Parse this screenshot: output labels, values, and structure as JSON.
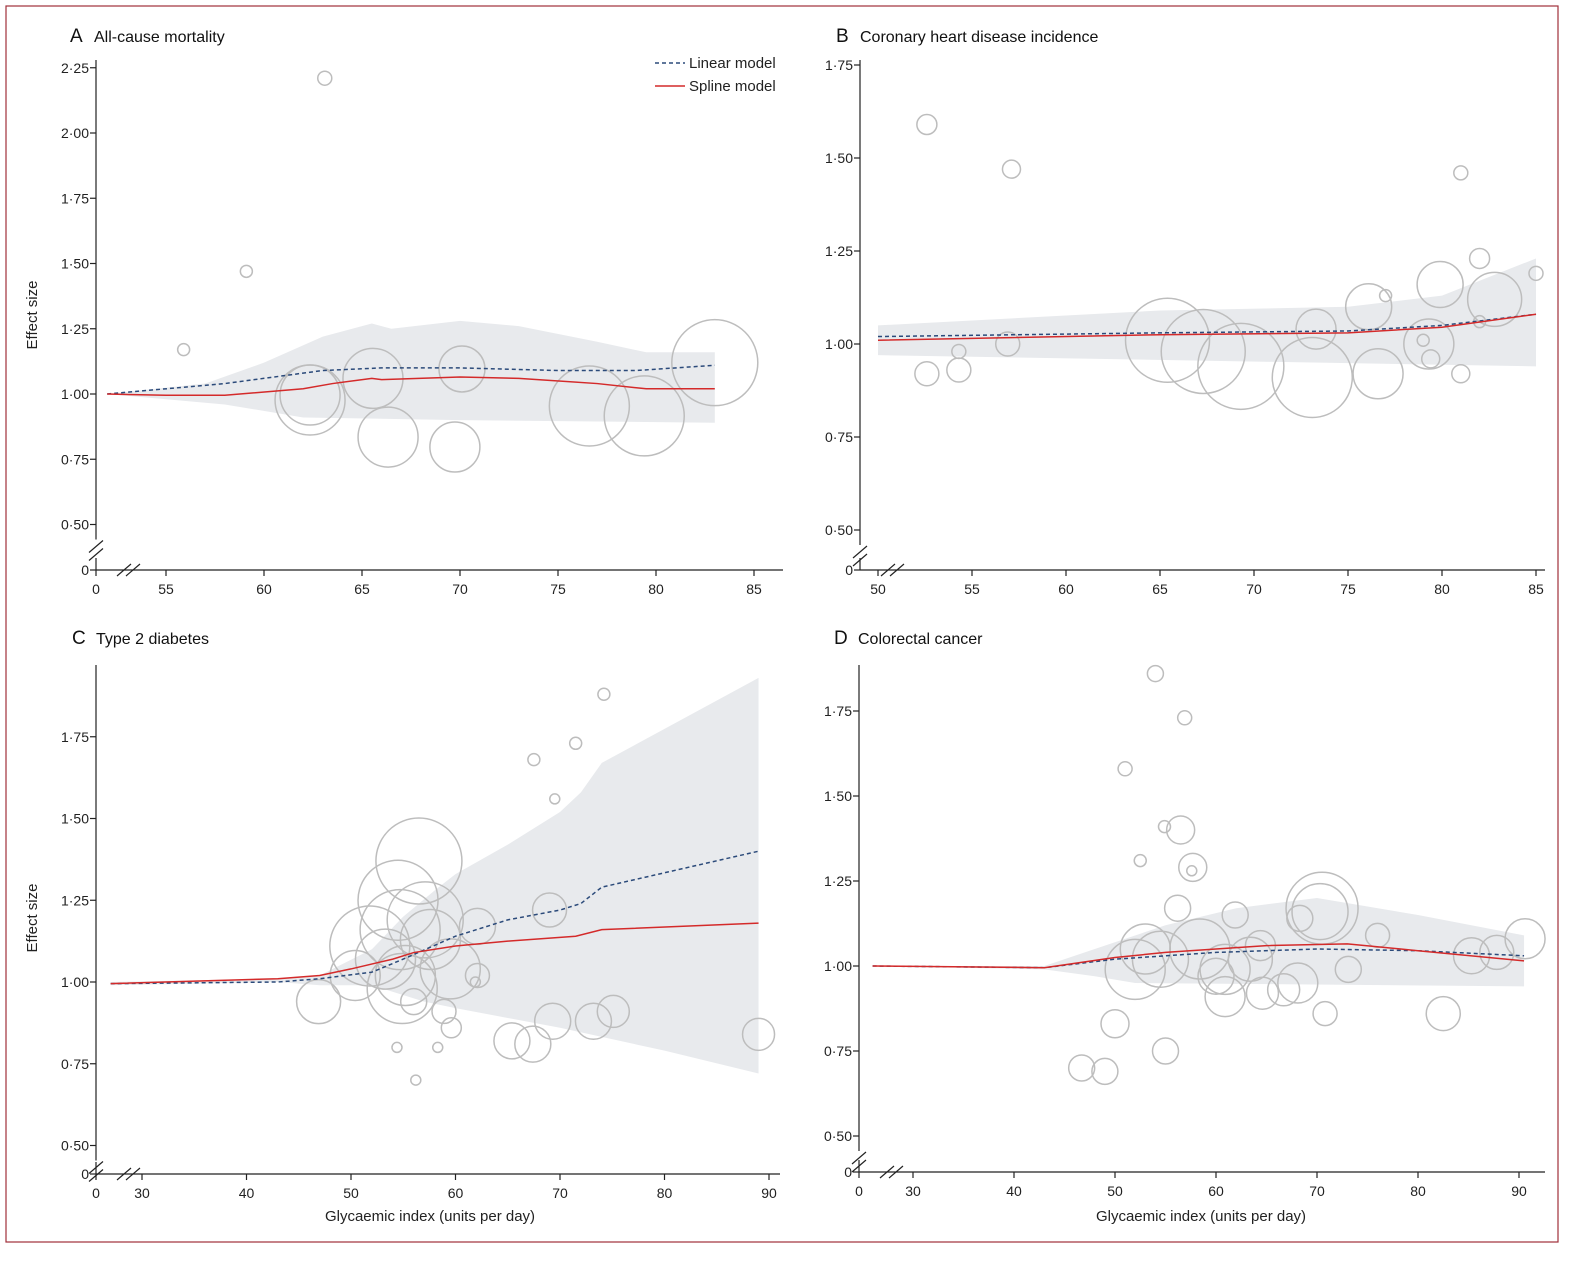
{
  "legend": {
    "linear": "Linear model",
    "spline": "Spline model"
  },
  "colors": {
    "linear": "#2b4a7a",
    "spline": "#d42a2a",
    "band": "#e8eaed",
    "bubble": "#bdbdbd",
    "frame": "#a0303a"
  },
  "chart_data": [
    {
      "id": "A",
      "letter": "A",
      "title": "All-cause mortality",
      "type": "scatter",
      "ylabel": "Effect size",
      "xlabel": "",
      "xticks": [
        0,
        55,
        60,
        65,
        70,
        75,
        80,
        85
      ],
      "yticks": [
        0,
        0.5,
        0.75,
        1.0,
        1.25,
        1.5,
        1.75,
        2.0,
        2.25
      ],
      "ytick_labels": [
        "0",
        "0·50",
        "0·75",
        "1·00",
        "1·25",
        "1·50",
        "1·75",
        "2·00",
        "2·25"
      ],
      "axis_breaks": true,
      "legend_position": "top-right",
      "grid": false,
      "linear_model": [
        [
          52,
          1.0
        ],
        [
          58,
          1.04
        ],
        [
          63,
          1.09
        ],
        [
          66,
          1.1
        ],
        [
          70,
          1.1
        ],
        [
          75,
          1.09
        ],
        [
          79,
          1.09
        ],
        [
          83,
          1.11
        ]
      ],
      "spline_model": [
        [
          52,
          1.0
        ],
        [
          55,
          0.995
        ],
        [
          58,
          0.995
        ],
        [
          62,
          1.02
        ],
        [
          63.5,
          1.04
        ],
        [
          65.5,
          1.06
        ],
        [
          66,
          1.055
        ],
        [
          70,
          1.065
        ],
        [
          73,
          1.06
        ],
        [
          77,
          1.04
        ],
        [
          79.5,
          1.02
        ],
        [
          83,
          1.02
        ]
      ],
      "ci_upper": [
        [
          52,
          1.0
        ],
        [
          57,
          1.04
        ],
        [
          60,
          1.12
        ],
        [
          63,
          1.22
        ],
        [
          65.5,
          1.27
        ],
        [
          66.5,
          1.25
        ],
        [
          70,
          1.28
        ],
        [
          73,
          1.26
        ],
        [
          77,
          1.2
        ],
        [
          79.5,
          1.16
        ],
        [
          83,
          1.16
        ]
      ],
      "ci_lower": [
        [
          52,
          1.0
        ],
        [
          58,
          0.96
        ],
        [
          62,
          0.91
        ],
        [
          70,
          0.9
        ],
        [
          83,
          0.89
        ]
      ],
      "studies": [
        [
          55.9,
          1.17,
          1.2
        ],
        [
          59.1,
          1.47,
          1.2
        ],
        [
          63.1,
          2.21,
          1.4
        ],
        [
          62.35,
          0.977,
          7
        ],
        [
          62.35,
          0.996,
          6
        ],
        [
          65.56,
          1.06,
          6
        ],
        [
          66.33,
          0.835,
          6
        ],
        [
          69.74,
          0.797,
          5
        ],
        [
          70.1,
          1.096,
          4.6
        ],
        [
          76.6,
          0.954,
          8
        ],
        [
          79.4,
          0.916,
          8
        ],
        [
          83.0,
          1.12,
          8.6
        ]
      ]
    },
    {
      "id": "B",
      "letter": "B",
      "title": "Coronary heart disease incidence",
      "type": "scatter",
      "ylabel": "",
      "xlabel": "",
      "xticks": [
        50,
        55,
        60,
        65,
        70,
        75,
        80,
        85
      ],
      "yticks": [
        0,
        0.5,
        0.75,
        1.0,
        1.25,
        1.5,
        1.75
      ],
      "ytick_labels": [
        "0",
        "0·50",
        "0·75",
        "1·00",
        "1·25",
        "1·50",
        "1·75"
      ],
      "axis_breaks": true,
      "grid": false,
      "linear_model": [
        [
          50,
          1.02
        ],
        [
          65,
          1.03
        ],
        [
          75,
          1.035
        ],
        [
          80,
          1.05
        ],
        [
          85,
          1.08
        ]
      ],
      "spline_model": [
        [
          50,
          1.01
        ],
        [
          65,
          1.025
        ],
        [
          75,
          1.03
        ],
        [
          80,
          1.045
        ],
        [
          85,
          1.08
        ]
      ],
      "ci_upper": [
        [
          50,
          1.05
        ],
        [
          65,
          1.09
        ],
        [
          75,
          1.1
        ],
        [
          80,
          1.13
        ],
        [
          85,
          1.23
        ]
      ],
      "ci_lower": [
        [
          50,
          0.97
        ],
        [
          85,
          0.94
        ]
      ],
      "studies": [
        [
          52.6,
          1.59,
          2
        ],
        [
          57.1,
          1.47,
          1.8
        ],
        [
          52.6,
          0.92,
          2.4
        ],
        [
          54.3,
          0.93,
          2.4
        ],
        [
          54.3,
          0.98,
          1.4
        ],
        [
          56.9,
          1.0,
          2.4
        ],
        [
          65.4,
          1.01,
          8.4
        ],
        [
          67.3,
          0.98,
          8.4
        ],
        [
          69.3,
          0.94,
          8.6
        ],
        [
          73.1,
          0.91,
          8
        ],
        [
          73.3,
          1.04,
          4
        ],
        [
          76.1,
          1.1,
          4.6
        ],
        [
          77.0,
          1.13,
          1.2
        ],
        [
          76.6,
          0.92,
          5
        ],
        [
          79.9,
          1.16,
          4.6
        ],
        [
          79.3,
          1.0,
          5
        ],
        [
          79.0,
          1.01,
          1.2
        ],
        [
          79.4,
          0.96,
          1.8
        ],
        [
          81.0,
          0.92,
          1.8
        ],
        [
          81.0,
          1.46,
          1.4
        ],
        [
          82.0,
          1.23,
          2
        ],
        [
          82.8,
          1.12,
          5.4
        ],
        [
          82.0,
          1.06,
          1.2
        ],
        [
          85.0,
          1.19,
          1.4
        ]
      ]
    },
    {
      "id": "C",
      "letter": "C",
      "title": "Type 2 diabetes",
      "type": "scatter",
      "ylabel": "Effect size",
      "xlabel": "Glycaemic index (units per day)",
      "xticks": [
        0,
        30,
        40,
        50,
        60,
        70,
        80,
        90
      ],
      "yticks": [
        0,
        0.5,
        0.75,
        1.0,
        1.25,
        1.5,
        1.75
      ],
      "ytick_labels": [
        "0",
        "0·50",
        "0·75",
        "1·00",
        "1·25",
        "1·50",
        "1·75"
      ],
      "axis_breaks": true,
      "grid": false,
      "linear_model": [
        [
          27,
          0.995
        ],
        [
          43,
          1.0
        ],
        [
          47,
          1.01
        ],
        [
          52,
          1.03
        ],
        [
          55,
          1.07
        ],
        [
          60,
          1.14
        ],
        [
          65,
          1.19
        ],
        [
          70,
          1.22
        ],
        [
          72,
          1.24
        ],
        [
          74,
          1.29
        ],
        [
          89,
          1.4
        ]
      ],
      "spline_model": [
        [
          27,
          0.995
        ],
        [
          43,
          1.01
        ],
        [
          47,
          1.02
        ],
        [
          50,
          1.04
        ],
        [
          54,
          1.07
        ],
        [
          56,
          1.09
        ],
        [
          60,
          1.11
        ],
        [
          65,
          1.125
        ],
        [
          71.5,
          1.14
        ],
        [
          74,
          1.16
        ],
        [
          89,
          1.18
        ]
      ],
      "ci_upper": [
        [
          27,
          1.0
        ],
        [
          43,
          1.01
        ],
        [
          47,
          1.02
        ],
        [
          52,
          1.1
        ],
        [
          55,
          1.2
        ],
        [
          58,
          1.28
        ],
        [
          60,
          1.33
        ],
        [
          65,
          1.42
        ],
        [
          70,
          1.52
        ],
        [
          72,
          1.58
        ],
        [
          74,
          1.67
        ],
        [
          89,
          1.93
        ]
      ],
      "ci_lower": [
        [
          27,
          0.99
        ],
        [
          43,
          1.0
        ],
        [
          47,
          0.99
        ],
        [
          52,
          0.99
        ],
        [
          57,
          0.94
        ],
        [
          60,
          0.92
        ],
        [
          70,
          0.86
        ],
        [
          80,
          0.79
        ],
        [
          89,
          0.72
        ]
      ],
      "studies": [
        [
          74.2,
          1.88,
          1.2
        ],
        [
          71.5,
          1.73,
          1.2
        ],
        [
          67.5,
          1.68,
          1.2
        ],
        [
          69.5,
          1.56,
          1
        ],
        [
          56.5,
          1.37,
          8.6
        ],
        [
          54.5,
          1.25,
          8
        ],
        [
          54.7,
          1.16,
          8
        ],
        [
          57.1,
          1.19,
          7.6
        ],
        [
          51.8,
          1.11,
          8
        ],
        [
          53.3,
          1.07,
          6
        ],
        [
          55.2,
          1.02,
          6
        ],
        [
          57.6,
          1.13,
          6
        ],
        [
          59.5,
          1.04,
          6
        ],
        [
          62.1,
          1.17,
          3.6
        ],
        [
          62.1,
          1.02,
          2.4
        ],
        [
          61.9,
          1.0,
          1
        ],
        [
          54.9,
          0.98,
          7
        ],
        [
          50.4,
          1.02,
          5
        ],
        [
          46.9,
          0.94,
          4.4
        ],
        [
          69.0,
          1.22,
          3.4
        ],
        [
          56.0,
          0.94,
          2.6
        ],
        [
          58.9,
          0.91,
          2.4
        ],
        [
          59.6,
          0.86,
          2
        ],
        [
          54.4,
          0.8,
          1
        ],
        [
          58.3,
          0.8,
          1
        ],
        [
          56.2,
          0.7,
          1
        ],
        [
          65.4,
          0.82,
          3.6
        ],
        [
          67.4,
          0.81,
          3.6
        ],
        [
          69.3,
          0.88,
          3.6
        ],
        [
          73.2,
          0.88,
          3.6
        ],
        [
          75.1,
          0.91,
          3.2
        ],
        [
          89.0,
          0.84,
          3.2
        ]
      ]
    },
    {
      "id": "D",
      "letter": "D",
      "title": "Colorectal cancer",
      "type": "scatter",
      "ylabel": "",
      "xlabel": "Glycaemic index (units per day)",
      "xticks": [
        0,
        30,
        40,
        50,
        60,
        70,
        80,
        90
      ],
      "yticks": [
        0,
        0.5,
        0.75,
        1.0,
        1.25,
        1.5,
        1.75
      ],
      "ytick_labels": [
        "0",
        "0·50",
        "0·75",
        "1·00",
        "1·25",
        "1·50",
        "1·75"
      ],
      "axis_breaks": true,
      "grid": false,
      "linear_model": [
        [
          26,
          1.0
        ],
        [
          43,
          0.995
        ],
        [
          50,
          1.02
        ],
        [
          60,
          1.04
        ],
        [
          70,
          1.05
        ],
        [
          80,
          1.045
        ],
        [
          90.5,
          1.03
        ]
      ],
      "spline_model": [
        [
          26,
          1.0
        ],
        [
          43,
          0.995
        ],
        [
          50,
          1.025
        ],
        [
          55,
          1.04
        ],
        [
          65,
          1.06
        ],
        [
          73,
          1.065
        ],
        [
          80,
          1.045
        ],
        [
          90.5,
          1.015
        ]
      ],
      "ci_upper": [
        [
          26,
          1.0
        ],
        [
          43,
          1.0
        ],
        [
          48,
          1.05
        ],
        [
          55,
          1.12
        ],
        [
          62,
          1.17
        ],
        [
          70,
          1.2
        ],
        [
          80,
          1.15
        ],
        [
          90.5,
          1.09
        ]
      ],
      "ci_lower": [
        [
          26,
          1.0
        ],
        [
          43,
          0.99
        ],
        [
          48,
          0.97
        ],
        [
          52,
          0.95
        ],
        [
          90.5,
          0.94
        ]
      ],
      "studies": [
        [
          54.0,
          1.86,
          1.6
        ],
        [
          56.9,
          1.73,
          1.4
        ],
        [
          51.0,
          1.58,
          1.4
        ],
        [
          54.9,
          1.41,
          1.2
        ],
        [
          56.5,
          1.4,
          2.8
        ],
        [
          52.5,
          1.31,
          1.2
        ],
        [
          57.7,
          1.29,
          2.8
        ],
        [
          57.6,
          1.28,
          1
        ],
        [
          70.5,
          1.17,
          7.2
        ],
        [
          70.3,
          1.16,
          5.6
        ],
        [
          56.2,
          1.17,
          2.6
        ],
        [
          61.9,
          1.15,
          2.6
        ],
        [
          68.3,
          1.14,
          2.6
        ],
        [
          76.0,
          1.09,
          2.4
        ],
        [
          52.0,
          0.99,
          6
        ],
        [
          53.0,
          1.05,
          5
        ],
        [
          54.5,
          1.02,
          5.6
        ],
        [
          58.4,
          1.05,
          6
        ],
        [
          60.9,
          0.99,
          5
        ],
        [
          63.4,
          1.02,
          4.4
        ],
        [
          64.4,
          1.06,
          3
        ],
        [
          60.0,
          0.97,
          3.6
        ],
        [
          50.0,
          0.83,
          2.8
        ],
        [
          55.0,
          0.75,
          2.6
        ],
        [
          46.7,
          0.7,
          2.6
        ],
        [
          49.0,
          0.69,
          2.6
        ],
        [
          60.9,
          0.91,
          4
        ],
        [
          64.6,
          0.92,
          3.2
        ],
        [
          66.7,
          0.93,
          3.2
        ],
        [
          68.1,
          0.95,
          4
        ],
        [
          70.8,
          0.86,
          2.4
        ],
        [
          73.1,
          0.99,
          2.6
        ],
        [
          82.5,
          0.86,
          3.4
        ],
        [
          85.3,
          1.03,
          3.6
        ],
        [
          87.8,
          1.04,
          3.4
        ],
        [
          90.6,
          1.08,
          4
        ]
      ]
    }
  ]
}
